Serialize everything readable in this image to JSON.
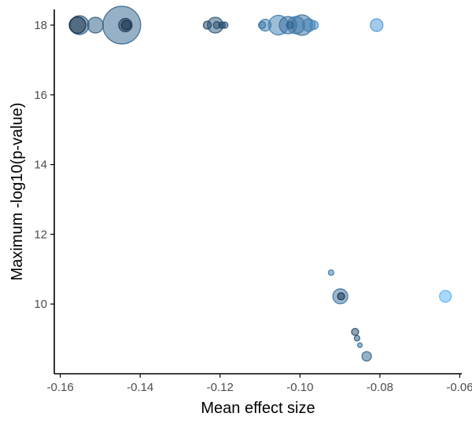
{
  "chart_data": {
    "type": "scatter",
    "title": "",
    "xlabel": "Mean effect size",
    "ylabel": "Maximum -log10(p-value)",
    "xlim": [
      -0.1615,
      -0.0595
    ],
    "ylim": [
      8.0,
      18.45
    ],
    "xticks": [
      -0.16,
      -0.14,
      -0.12,
      -0.1,
      -0.08,
      -0.06
    ],
    "xtick_labels": [
      "-0.16",
      "-0.14",
      "-0.12",
      "-0.10",
      "-0.08",
      "-0.06"
    ],
    "yticks": [
      10,
      12,
      14,
      16,
      18
    ],
    "ytick_labels": [
      "10",
      "12",
      "14",
      "16",
      "18"
    ],
    "grid": false,
    "legend": "none",
    "color_scale": {
      "low": "#132B43",
      "high": "#56B1F7"
    },
    "points": [
      {
        "x": -0.1446,
        "y": 18.0,
        "size": 24.0,
        "color": 0.4
      },
      {
        "x": -0.1552,
        "y": 18.0,
        "size": 12.0,
        "color": 0.35
      },
      {
        "x": -0.1557,
        "y": 18.0,
        "size": 10.5,
        "color": 0.0
      },
      {
        "x": -0.1512,
        "y": 18.0,
        "size": 10.0,
        "color": 0.35
      },
      {
        "x": -0.1437,
        "y": 18.0,
        "size": 8.5,
        "color": 0.1
      },
      {
        "x": -0.1435,
        "y": 18.0,
        "size": 6.0,
        "color": 0.0
      },
      {
        "x": -0.1212,
        "y": 18.0,
        "size": 10.0,
        "color": 0.3
      },
      {
        "x": -0.1232,
        "y": 18.0,
        "size": 5.0,
        "color": 0.2
      },
      {
        "x": -0.1208,
        "y": 18.0,
        "size": 4.5,
        "color": 0.25
      },
      {
        "x": -0.1195,
        "y": 18.0,
        "size": 4.0,
        "color": 0.15
      },
      {
        "x": -0.1188,
        "y": 18.0,
        "size": 4.0,
        "color": 0.3
      },
      {
        "x": -0.1095,
        "y": 18.0,
        "size": 4.5,
        "color": 0.55
      },
      {
        "x": -0.1087,
        "y": 18.0,
        "size": 7.5,
        "color": 0.6
      },
      {
        "x": -0.1054,
        "y": 18.0,
        "size": 12.5,
        "color": 0.6
      },
      {
        "x": -0.103,
        "y": 18.0,
        "size": 11.0,
        "color": 0.5
      },
      {
        "x": -0.1025,
        "y": 18.0,
        "size": 4.5,
        "color": 0.4
      },
      {
        "x": -0.101,
        "y": 18.0,
        "size": 11.0,
        "color": 0.55
      },
      {
        "x": -0.0995,
        "y": 18.0,
        "size": 13.0,
        "color": 0.5
      },
      {
        "x": -0.0978,
        "y": 18.0,
        "size": 8.0,
        "color": 0.6
      },
      {
        "x": -0.0965,
        "y": 18.0,
        "size": 5.5,
        "color": 0.7
      },
      {
        "x": -0.0808,
        "y": 18.0,
        "size": 8.0,
        "color": 0.8
      },
      {
        "x": -0.0922,
        "y": 10.9,
        "size": 3.5,
        "color": 0.55
      },
      {
        "x": -0.0899,
        "y": 10.22,
        "size": 9.5,
        "color": 0.5
      },
      {
        "x": -0.0897,
        "y": 10.22,
        "size": 4.5,
        "color": 0.0
      },
      {
        "x": -0.0636,
        "y": 10.22,
        "size": 7.5,
        "color": 1.0
      },
      {
        "x": -0.0862,
        "y": 9.2,
        "size": 4.5,
        "color": 0.2
      },
      {
        "x": -0.0857,
        "y": 9.02,
        "size": 3.5,
        "color": 0.3
      },
      {
        "x": -0.085,
        "y": 8.82,
        "size": 3.0,
        "color": 0.5
      },
      {
        "x": -0.0833,
        "y": 8.5,
        "size": 6.0,
        "color": 0.4
      }
    ]
  }
}
